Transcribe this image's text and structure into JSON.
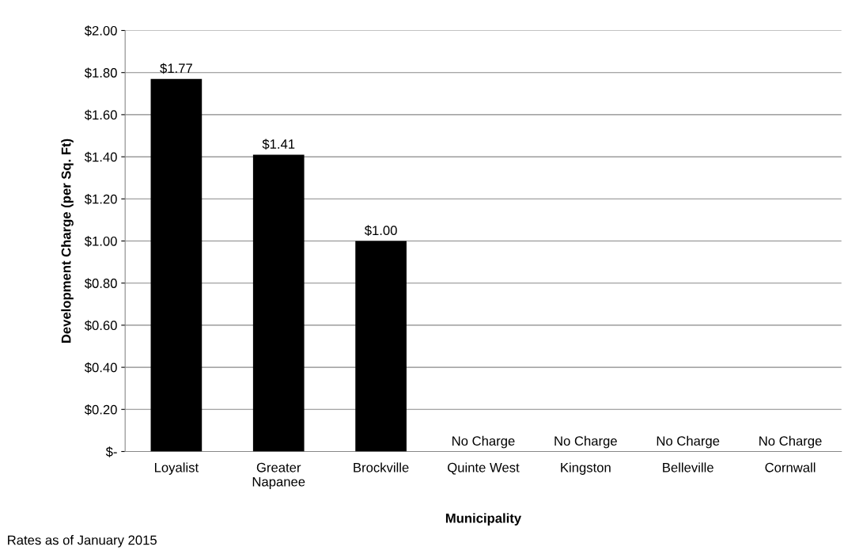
{
  "chart_data": {
    "type": "bar",
    "xlabel": "Municipality",
    "ylabel": "Development Charge (per Sq. Ft)",
    "categories": [
      "Loyalist",
      "Greater\nNapanee",
      "Brockville",
      "Quinte West",
      "Kingston",
      "Belleville",
      "Cornwall"
    ],
    "values": [
      1.77,
      1.41,
      1.0,
      0,
      0,
      0,
      0
    ],
    "value_labels": [
      "$1.77",
      "$1.41",
      "$1.00",
      "No Charge",
      "No Charge",
      "No Charge",
      "No Charge"
    ],
    "color": "#000000",
    "ylim": [
      0,
      2.0
    ],
    "yticks": [
      {
        "value": 0,
        "label": "$-"
      },
      {
        "value": 0.2,
        "label": "$0.20"
      },
      {
        "value": 0.4,
        "label": "$0.40"
      },
      {
        "value": 0.6,
        "label": "$0.60"
      },
      {
        "value": 0.8,
        "label": "$0.80"
      },
      {
        "value": 1.0,
        "label": "$1.00"
      },
      {
        "value": 1.2,
        "label": "$1.20"
      },
      {
        "value": 1.4,
        "label": "$1.40"
      },
      {
        "value": 1.6,
        "label": "$1.60"
      },
      {
        "value": 1.8,
        "label": "$1.80"
      },
      {
        "value": 2.0,
        "label": "$2.00"
      }
    ],
    "grid": "y",
    "legend": false,
    "annotations": [
      "Rates as of January 2015"
    ]
  }
}
